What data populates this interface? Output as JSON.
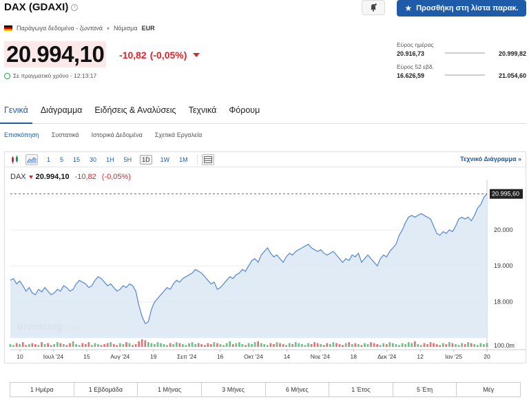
{
  "header": {
    "title": "DAX (GDAXI)",
    "watchlist_button": "Προσθήκη στη λίστα παρακ.",
    "meta_text": "Παράγωγα δεδομένα - ζωντανά",
    "currency_label": "Νόμισμα",
    "currency": "EUR",
    "price": "20.994,10",
    "change": "-10,82",
    "change_pct": "(-0,05%)",
    "realtime_text": "Σε πραγματικό χρόνο · 12:13:17"
  },
  "ranges": {
    "day_label": "Εύρος ημέρας",
    "day_low": "20.916,73",
    "day_high": "20.999,82",
    "week52_label": "Εύρος 52 εβδ.",
    "week52_low": "16.626,59",
    "week52_high": "21.054,60"
  },
  "main_tabs": [
    "Γενικά",
    "Διάγραμμα",
    "Ειδήσεις & Αναλύσεις",
    "Τεχνικά",
    "Φόρουμ"
  ],
  "sub_tabs": [
    "Επισκόπηση",
    "Συστατικά",
    "Ιστορικά Δεδομένα",
    "Σχετικά Εργαλεία"
  ],
  "toolbar": {
    "intervals": [
      "1",
      "5",
      "15",
      "30",
      "1H",
      "5H",
      "1D",
      "1W",
      "1M"
    ],
    "active_interval": "1D",
    "tech_chart_link": "Τεχνικό Διάγραμμα »"
  },
  "quote": {
    "symbol": "DAX",
    "value": "20.994,10",
    "change": "-10,82",
    "change_pct": "(-0,05%)"
  },
  "range_buttons": [
    "1 Ημέρα",
    "1 Εβδομάδα",
    "1 Μήνας",
    "3 Μήνες",
    "6 Μήνες",
    "1 Έτος",
    "5 Έτη",
    "Μέγ"
  ],
  "watermark": {
    "brand": "Investing",
    "suffix": ".com"
  },
  "colors": {
    "accent": "#1e5ba8",
    "negative": "#d9262b",
    "line": "#5b8ed6",
    "area": "#dbe7f5"
  },
  "chart_data": {
    "type": "area",
    "y_ticks": [
      "20.000",
      "19.000",
      "18.000"
    ],
    "y_tick_values": [
      20000,
      19000,
      18000
    ],
    "volume_label": "100.0m",
    "last_price_label": "20.995,60",
    "last_price": 20995.6,
    "x_ticks": [
      "10",
      "Ιουλ '24",
      "15",
      "Αυγ '24",
      "19",
      "Σεπ '24",
      "16",
      "Οκτ '24",
      "14",
      "Νοε '24",
      "18",
      "Δεκ '24",
      "12",
      "Ιαν '25",
      "20"
    ],
    "ylim": [
      17000,
      21200
    ],
    "values": [
      18600,
      18650,
      18500,
      18580,
      18450,
      18300,
      18400,
      18250,
      18200,
      18350,
      18280,
      18400,
      18300,
      18200,
      18250,
      18350,
      18300,
      18450,
      18400,
      18300,
      18350,
      18500,
      18600,
      18550,
      18500,
      18400,
      18450,
      18600,
      18700,
      18650,
      18550,
      18450,
      18500,
      18400,
      18300,
      18350,
      18450,
      18400,
      18500,
      18450,
      18300,
      17900,
      17600,
      17400,
      17450,
      17800,
      18000,
      18100,
      18200,
      18300,
      18400,
      18350,
      18500,
      18600,
      18550,
      18650,
      18700,
      18750,
      18800,
      18900,
      18850,
      18800,
      18700,
      18600,
      18500,
      18550,
      18350,
      18400,
      18500,
      18600,
      18700,
      18650,
      18750,
      18800,
      18900,
      18850,
      19000,
      19150,
      19200,
      19100,
      19300,
      19400,
      19500,
      19350,
      19250,
      19300,
      19200,
      19100,
      19250,
      19350,
      19300,
      19400,
      19450,
      19500,
      19550,
      19600,
      19500,
      19450,
      19400,
      19450,
      19350,
      19300,
      19350,
      19400,
      19300,
      19200,
      19100,
      19200,
      19150,
      19300,
      19250,
      19350,
      19100,
      19200,
      19300,
      19200,
      19100,
      19000,
      19200,
      19300,
      19250,
      19400,
      19500,
      19600,
      19850,
      20000,
      20200,
      20350,
      20400,
      20350,
      20400,
      20450,
      20400,
      20350,
      20300,
      20100,
      19900,
      19850,
      19950,
      19900,
      20000,
      19950,
      20100,
      20300,
      20350,
      20300,
      20350,
      20250,
      20400,
      20600,
      20700,
      20900,
      20995.6
    ],
    "volumes": [
      3,
      2,
      4,
      3,
      5,
      2,
      3,
      4,
      3,
      2,
      5,
      3,
      4,
      2,
      3,
      5,
      4,
      3,
      2,
      4,
      6,
      3,
      2,
      4,
      3,
      5,
      2,
      4,
      3,
      2,
      3,
      4,
      5,
      3,
      2,
      4,
      3,
      5,
      4,
      2,
      3,
      6,
      8,
      7,
      5,
      4,
      3,
      5,
      4,
      3,
      2,
      4,
      3,
      5,
      4,
      3,
      2,
      4,
      5,
      3,
      4,
      3,
      2,
      4,
      3,
      5,
      4,
      3,
      2,
      4,
      6,
      3,
      4,
      5,
      3,
      2,
      4,
      3,
      5,
      6,
      4,
      3,
      2,
      4,
      3,
      5,
      4,
      3,
      2,
      4,
      3,
      5,
      4,
      3,
      2,
      4,
      3,
      5,
      4,
      3,
      2,
      4,
      3,
      5,
      4,
      3,
      2,
      4,
      5,
      3,
      4,
      3,
      2,
      4,
      3,
      5,
      4,
      3,
      2,
      4,
      3,
      5,
      4,
      3,
      2,
      4,
      3,
      5,
      4,
      6,
      3,
      2,
      4,
      3,
      5,
      4,
      3,
      2,
      4,
      3,
      5,
      4,
      3,
      2,
      4,
      3,
      5,
      4,
      3,
      2,
      4,
      3,
      4
    ]
  }
}
